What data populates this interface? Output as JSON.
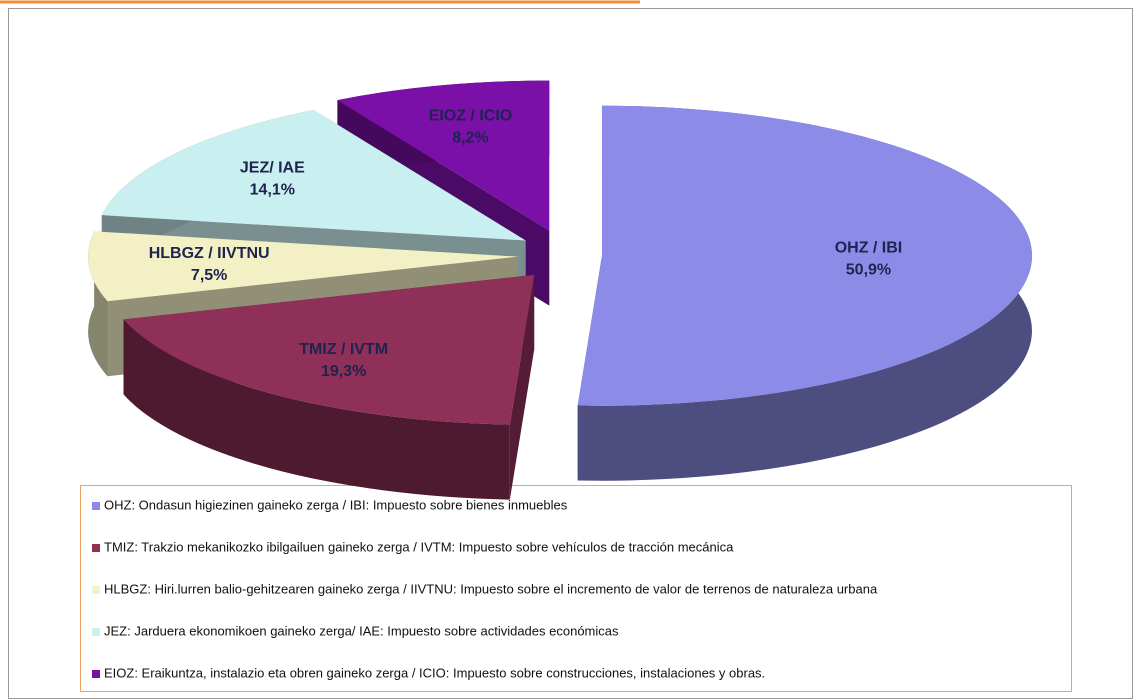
{
  "chart_data": {
    "type": "pie",
    "categories": [
      "OHZ / IBI",
      "TMIZ / IVTM",
      "HLBGZ / IIVTNU",
      "JEZ/ IAE",
      "EIOZ / ICIO"
    ],
    "values": [
      50.9,
      19.3,
      7.5,
      14.1,
      8.2
    ],
    "value_labels": [
      "50,9%",
      "19,3%",
      "7,5%",
      "14,1%",
      "8,2%"
    ],
    "colors": [
      "#8c8ce8",
      "#8e3058",
      "#f2f0c4",
      "#c9eff0",
      "#7b10a8"
    ],
    "legend": [
      "OHZ: Ondasun higiezinen gaineko zerga / IBI: Impuesto sobre bienes inmuebles",
      "TMIZ: Trakzio mekanikozko ibilgailuen gaineko zerga / IVTM: Impuesto sobre vehículos de tracción mecánica",
      "HLBGZ: Hiri.lurren balio-gehitzearen gaineko zerga / IIVTNU: Impuesto sobre el incremento de valor de terrenos de naturaleza urbana",
      "JEZ: Jarduera ekonomikoen gaineko zerga/ IAE: Impuesto sobre actividades económicas",
      "EIOZ: Eraikuntza, instalazio eta obren gaineko zerga / ICIO: Impuesto sobre construcciones, instalaciones y obras."
    ]
  }
}
